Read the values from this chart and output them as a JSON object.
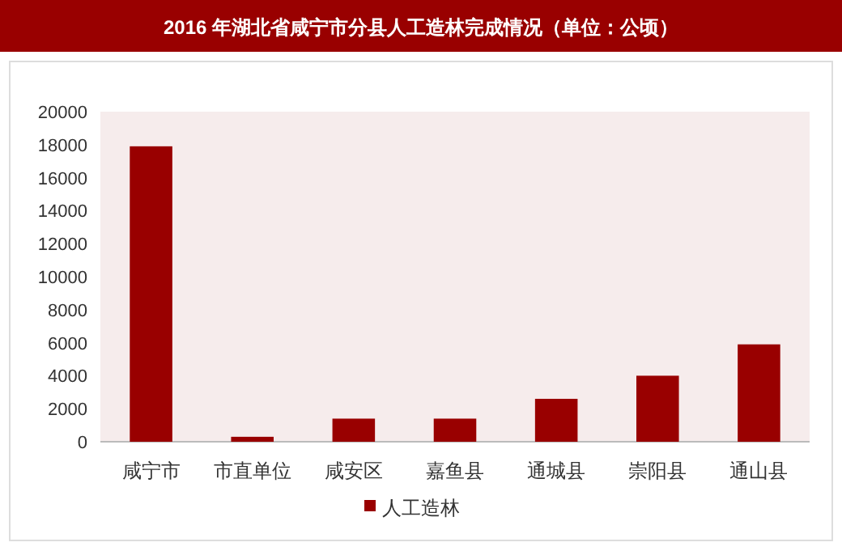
{
  "chart_data": {
    "type": "bar",
    "title": "2016 年湖北省咸宁市分县人工造林完成情况（单位：公顷）",
    "categories": [
      "咸宁市",
      "市直单位",
      "咸安区",
      "嘉鱼县",
      "通城县",
      "崇阳县",
      "通山县"
    ],
    "series": [
      {
        "name": "人工造林",
        "color": "#990000",
        "values": [
          17900,
          300,
          1400,
          1400,
          2600,
          4000,
          5900
        ]
      }
    ],
    "ylim": [
      0,
      20000
    ],
    "yticks": [
      0,
      2000,
      4000,
      6000,
      8000,
      10000,
      12000,
      14000,
      16000,
      18000,
      20000
    ],
    "grid": false,
    "legend": "bottom"
  }
}
